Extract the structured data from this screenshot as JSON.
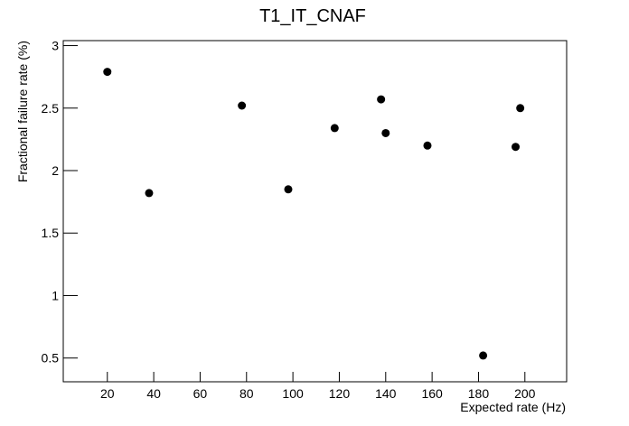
{
  "chart_data": {
    "type": "scatter",
    "title": "T1_IT_CNAF",
    "x_label": "Expected rate (Hz)",
    "y_label": "Fractional failure rate (%)",
    "x": [
      20,
      38,
      78,
      98,
      118,
      138,
      140,
      158,
      182,
      196,
      198
    ],
    "values": [
      2.79,
      1.82,
      2.52,
      1.85,
      2.34,
      2.57,
      2.3,
      2.2,
      0.52,
      2.19,
      2.5
    ],
    "color": "#000000",
    "xlim": [
      1,
      218
    ],
    "ylim": [
      0.31,
      3.04
    ],
    "xticks": [
      20,
      40,
      60,
      80,
      100,
      120,
      140,
      160,
      180,
      200
    ],
    "yticks": [
      0.5,
      1,
      1.5,
      2,
      2.5,
      3
    ]
  }
}
